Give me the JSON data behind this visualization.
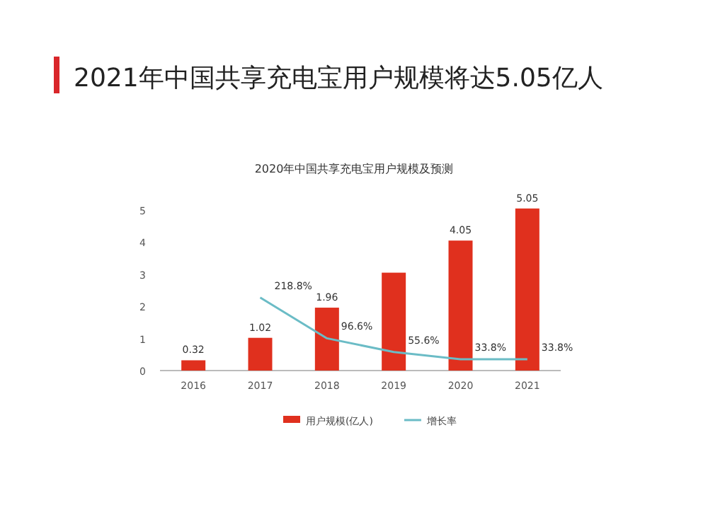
{
  "chart_data": {
    "type": "bar",
    "title": "2021年中国共享充电宝用户规模将达5.05亿人",
    "subtitle": "2020年中国共享充电宝用户规模及预测",
    "categories": [
      "2016",
      "2017",
      "2018",
      "2019",
      "2020",
      "2021"
    ],
    "series": [
      {
        "name": "用户规模(亿人)",
        "color": "#e0301e",
        "values": [
          0.32,
          1.02,
          1.96,
          3.05,
          4.05,
          5.05
        ],
        "value_labels": [
          "0.32",
          "1.02",
          "1.96",
          null,
          "4.05",
          "5.05"
        ]
      },
      {
        "name": "增长率",
        "type": "line",
        "axis": "y2",
        "color": "#6bbcc6",
        "values": [
          null,
          218.8,
          96.6,
          55.6,
          33.8,
          33.8
        ],
        "value_labels": [
          null,
          "218.8%",
          "96.6%",
          "55.6%",
          "33.8%",
          "33.8%"
        ]
      }
    ],
    "ylim": [
      0,
      5.2
    ],
    "yticks": [
      0,
      1,
      2,
      3,
      4,
      5
    ],
    "y2lim": [
      0,
      500
    ],
    "grid": false,
    "legend": "bottom",
    "marker": "none"
  }
}
